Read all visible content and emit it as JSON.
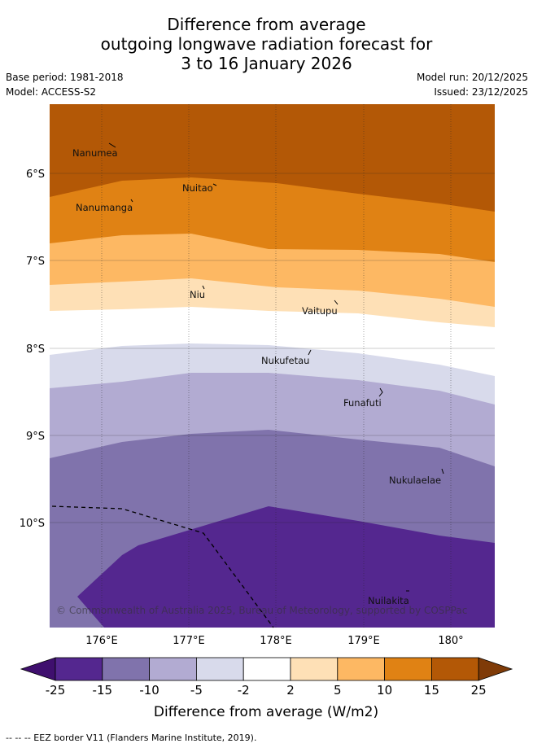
{
  "title": {
    "line1": "Difference from average",
    "line2": "outgoing longwave radiation forecast for",
    "line3": "3 to 16 January 2026"
  },
  "meta": {
    "base_period": "Base period: 1981-2018",
    "model": "Model: ACCESS-S2",
    "model_run": "Model run: 20/12/2025",
    "issued": "Issued: 23/12/2025"
  },
  "axes": {
    "lat_labels": [
      "6°S",
      "7°S",
      "8°S",
      "9°S",
      "10°S"
    ],
    "lon_labels": [
      "176°E",
      "177°E",
      "178°E",
      "179°E",
      "180°"
    ]
  },
  "places": [
    "Nanumea",
    "Nuitao",
    "Nanumanga",
    "Niu",
    "Vaitupu",
    "Nukufetau",
    "Funafuti",
    "Nukulaelae",
    "Nuilakita"
  ],
  "copyright": "© Commonwealth of Australia 2025, Bureau of Meteorology, supported by COSPPac",
  "colorbar": {
    "ticks": [
      "-25",
      "-15",
      "-10",
      "-5",
      "-2",
      "2",
      "5",
      "10",
      "15",
      "25"
    ],
    "label": "Difference from average (W/m2)",
    "colors": [
      "#3f0f6e",
      "#54278f",
      "#8073ac",
      "#b2abd2",
      "#d8daeb",
      "#ffffff",
      "#fee0b6",
      "#fdb863",
      "#e08214",
      "#b35806",
      "#7f3b08"
    ]
  },
  "legend_note": "-- -- -- EEZ border V11 (Flanders Marine Institute, 2019)."
}
